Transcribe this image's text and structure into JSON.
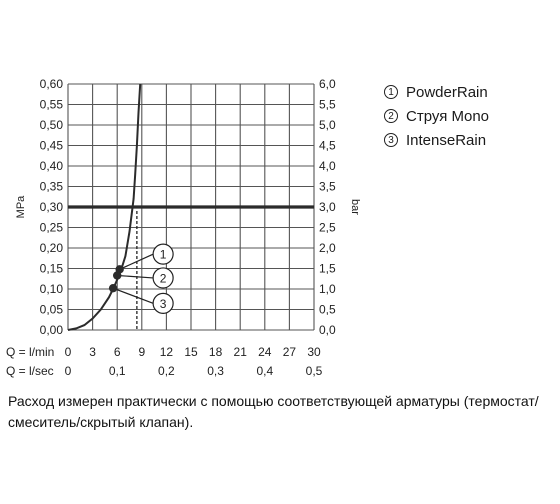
{
  "chart_data": {
    "type": "line",
    "left_axis_label": "MPa",
    "right_axis_label": "bar",
    "y_left_ticks": [
      "0,00",
      "0,05",
      "0,10",
      "0,15",
      "0,20",
      "0,25",
      "0,30",
      "0,35",
      "0,40",
      "0,45",
      "0,50",
      "0,55",
      "0,60"
    ],
    "y_right_ticks": [
      "0,0",
      "0,5",
      "1,0",
      "1,5",
      "2,0",
      "2,5",
      "3,0",
      "3,5",
      "4,0",
      "4,5",
      "5,0",
      "5,5",
      "6,0"
    ],
    "ylim": [
      0,
      0.6
    ],
    "x_row1_label": "Q = l/min",
    "x_row1_ticks": [
      "0",
      "3",
      "6",
      "9",
      "12",
      "15",
      "18",
      "21",
      "24",
      "27",
      "30"
    ],
    "x_row2_label": "Q = l/sec",
    "x_row2_ticks": [
      "0",
      "0,1",
      "0,2",
      "0,3",
      "0,4",
      "0,5"
    ],
    "xlim_lpm": [
      0,
      30
    ],
    "reference_line_mpa": 0.3,
    "curve": {
      "x_lpm": [
        0,
        1,
        2,
        3,
        4,
        5,
        5.5,
        6,
        6.5,
        7,
        7.5,
        8,
        8.2,
        8.4,
        8.6,
        8.8
      ],
      "y_mpa": [
        0,
        0.004,
        0.012,
        0.028,
        0.05,
        0.08,
        0.1,
        0.123,
        0.148,
        0.18,
        0.24,
        0.32,
        0.38,
        0.45,
        0.53,
        0.6
      ]
    },
    "vertical_dashed_x_lpm": 8.4,
    "markers": [
      {
        "id": "1",
        "x_lpm": 6.3,
        "y_mpa": 0.148
      },
      {
        "id": "2",
        "x_lpm": 6.0,
        "y_mpa": 0.133
      },
      {
        "id": "3",
        "x_lpm": 5.5,
        "y_mpa": 0.102
      }
    ],
    "callouts": [
      {
        "label": "1",
        "x_lpm": 11.6,
        "y_mpa": 0.185
      },
      {
        "label": "2",
        "x_lpm": 11.6,
        "y_mpa": 0.127
      },
      {
        "label": "3",
        "x_lpm": 11.6,
        "y_mpa": 0.065
      }
    ],
    "grid": true
  },
  "legend": [
    {
      "num": "1",
      "label": "PowderRain"
    },
    {
      "num": "2",
      "label": "Струя Mono"
    },
    {
      "num": "3",
      "label": "IntenseRain"
    }
  ],
  "note": "Расход измерен практически с помощью соответствующей арматуры (термостат/смеситель/скрытый клапан).",
  "colors": {
    "line": "#2b2b2b",
    "grid": "#555555",
    "reference": "#2b2b2b"
  }
}
